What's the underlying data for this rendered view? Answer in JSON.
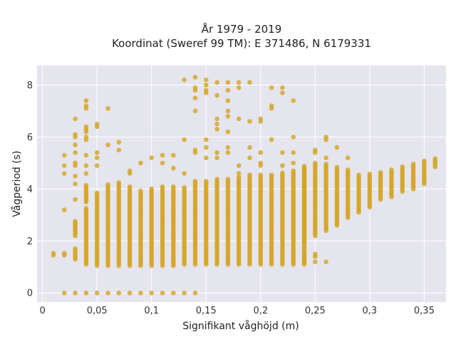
{
  "chart_data": {
    "type": "scatter",
    "title_line1": "År 1979 - 2019",
    "title_line2": "Koordinat (Sweref 99 TM): E 371486, N 6179331",
    "xlabel": "Signifikant våghöjd (m)",
    "ylabel": "Vågperiod (s)",
    "xlim": [
      -0.005,
      0.37
    ],
    "ylim": [
      -0.35,
      8.75
    ],
    "x_ticks": [
      0,
      0.05,
      0.1,
      0.15,
      0.2,
      0.25,
      0.3,
      0.35
    ],
    "x_tick_labels": [
      "0",
      "0,05",
      "0,1",
      "0,15",
      "0,2",
      "0,25",
      "0,3",
      "0,35"
    ],
    "y_ticks": [
      0,
      2,
      4,
      6,
      8
    ],
    "y_tick_labels": [
      "0",
      "2",
      "4",
      "6",
      "8"
    ],
    "grid": true,
    "background": "#e5e5ee",
    "marker_color": "#d4a421",
    "columns": [
      {
        "x": 0.01,
        "ranges": [
          [
            1.45,
            1.55
          ]
        ]
      },
      {
        "x": 0.02,
        "ranges": [
          [
            1.45,
            1.6
          ]
        ]
      },
      {
        "x": 0.03,
        "ranges": [
          [
            1.3,
            1.7
          ],
          [
            2.2,
            2.8
          ]
        ]
      },
      {
        "x": 0.04,
        "ranges": [
          [
            1.1,
            3.3
          ],
          [
            3.5,
            4.2
          ]
        ]
      },
      {
        "x": 0.05,
        "ranges": [
          [
            1.05,
            3.9
          ]
        ]
      },
      {
        "x": 0.06,
        "ranges": [
          [
            1.05,
            4.2
          ]
        ]
      },
      {
        "x": 0.07,
        "ranges": [
          [
            1.05,
            4.3
          ]
        ]
      },
      {
        "x": 0.08,
        "ranges": [
          [
            1.05,
            4.1
          ]
        ]
      },
      {
        "x": 0.09,
        "ranges": [
          [
            1.05,
            4.0
          ]
        ]
      },
      {
        "x": 0.1,
        "ranges": [
          [
            1.05,
            4.05
          ]
        ]
      },
      {
        "x": 0.11,
        "ranges": [
          [
            1.05,
            4.15
          ]
        ]
      },
      {
        "x": 0.12,
        "ranges": [
          [
            1.05,
            4.1
          ]
        ]
      },
      {
        "x": 0.13,
        "ranges": [
          [
            1.1,
            4.1
          ]
        ]
      },
      {
        "x": 0.14,
        "ranges": [
          [
            1.1,
            4.3
          ]
        ]
      },
      {
        "x": 0.15,
        "ranges": [
          [
            1.1,
            4.3
          ]
        ]
      },
      {
        "x": 0.16,
        "ranges": [
          [
            1.1,
            4.4
          ]
        ]
      },
      {
        "x": 0.17,
        "ranges": [
          [
            1.1,
            4.45
          ]
        ]
      },
      {
        "x": 0.18,
        "ranges": [
          [
            1.1,
            4.5
          ]
        ]
      },
      {
        "x": 0.19,
        "ranges": [
          [
            1.1,
            4.55
          ]
        ]
      },
      {
        "x": 0.2,
        "ranges": [
          [
            1.1,
            4.6
          ]
        ]
      },
      {
        "x": 0.21,
        "ranges": [
          [
            1.1,
            4.6
          ]
        ]
      },
      {
        "x": 0.22,
        "ranges": [
          [
            1.1,
            4.65
          ]
        ]
      },
      {
        "x": 0.23,
        "ranges": [
          [
            1.1,
            4.7
          ]
        ]
      },
      {
        "x": 0.24,
        "ranges": [
          [
            1.1,
            4.8
          ],
          [
            2.0,
            4.9
          ]
        ]
      },
      {
        "x": 0.25,
        "ranges": [
          [
            2.2,
            5.0
          ]
        ]
      },
      {
        "x": 0.26,
        "ranges": [
          [
            2.4,
            5.0
          ]
        ]
      },
      {
        "x": 0.27,
        "ranges": [
          [
            2.6,
            4.9
          ]
        ]
      },
      {
        "x": 0.28,
        "ranges": [
          [
            2.9,
            4.8
          ]
        ]
      },
      {
        "x": 0.29,
        "ranges": [
          [
            3.1,
            4.6
          ]
        ]
      },
      {
        "x": 0.3,
        "ranges": [
          [
            3.3,
            4.6
          ]
        ]
      },
      {
        "x": 0.31,
        "ranges": [
          [
            3.6,
            4.7
          ]
        ]
      },
      {
        "x": 0.32,
        "ranges": [
          [
            3.7,
            4.8
          ]
        ]
      },
      {
        "x": 0.33,
        "ranges": [
          [
            3.9,
            4.9
          ]
        ]
      },
      {
        "x": 0.34,
        "ranges": [
          [
            4.0,
            5.0
          ]
        ]
      },
      {
        "x": 0.35,
        "ranges": [
          [
            4.2,
            5.1
          ]
        ]
      },
      {
        "x": 0.36,
        "ranges": [
          [
            4.85,
            5.2
          ]
        ]
      }
    ],
    "points": [
      [
        0.02,
        0
      ],
      [
        0.03,
        0
      ],
      [
        0.04,
        0
      ],
      [
        0.05,
        0
      ],
      [
        0.06,
        0
      ],
      [
        0.07,
        0
      ],
      [
        0.08,
        0
      ],
      [
        0.09,
        0
      ],
      [
        0.1,
        0
      ],
      [
        0.11,
        0
      ],
      [
        0.12,
        0
      ],
      [
        0.13,
        0
      ],
      [
        0.14,
        0
      ],
      [
        0.02,
        3.2
      ],
      [
        0.02,
        4.6
      ],
      [
        0.02,
        4.9
      ],
      [
        0.02,
        5.3
      ],
      [
        0.03,
        3.6
      ],
      [
        0.03,
        4.2
      ],
      [
        0.03,
        4.5
      ],
      [
        0.03,
        4.9
      ],
      [
        0.03,
        5.0
      ],
      [
        0.03,
        5.4
      ],
      [
        0.03,
        5.7
      ],
      [
        0.03,
        6.0
      ],
      [
        0.03,
        6.1
      ],
      [
        0.03,
        6.7
      ],
      [
        0.04,
        4.6
      ],
      [
        0.04,
        4.9
      ],
      [
        0.04,
        5.3
      ],
      [
        0.04,
        5.9
      ],
      [
        0.04,
        6.0
      ],
      [
        0.04,
        6.2
      ],
      [
        0.04,
        6.3
      ],
      [
        0.04,
        6.4
      ],
      [
        0.04,
        7.1
      ],
      [
        0.04,
        7.2
      ],
      [
        0.04,
        7.4
      ],
      [
        0.05,
        4.9
      ],
      [
        0.05,
        5.2
      ],
      [
        0.05,
        5.4
      ],
      [
        0.05,
        6.4
      ],
      [
        0.05,
        6.5
      ],
      [
        0.06,
        5.7
      ],
      [
        0.06,
        7.1
      ],
      [
        0.07,
        5.5
      ],
      [
        0.07,
        5.8
      ],
      [
        0.08,
        4.6
      ],
      [
        0.08,
        4.7
      ],
      [
        0.09,
        5.0
      ],
      [
        0.1,
        5.2
      ],
      [
        0.11,
        5.3
      ],
      [
        0.11,
        5.0
      ],
      [
        0.12,
        5.3
      ],
      [
        0.12,
        4.8
      ],
      [
        0.13,
        5.9
      ],
      [
        0.13,
        4.6
      ],
      [
        0.14,
        5.4
      ],
      [
        0.14,
        5.5
      ],
      [
        0.14,
        7.0
      ],
      [
        0.14,
        7.5
      ],
      [
        0.14,
        7.8
      ],
      [
        0.14,
        7.9
      ],
      [
        0.14,
        8.3
      ],
      [
        0.13,
        8.2
      ],
      [
        0.15,
        5.9
      ],
      [
        0.15,
        5.6
      ],
      [
        0.15,
        5.2
      ],
      [
        0.15,
        7.7
      ],
      [
        0.15,
        7.8
      ],
      [
        0.15,
        8.0
      ],
      [
        0.15,
        8.2
      ],
      [
        0.16,
        8.1
      ],
      [
        0.16,
        7.6
      ],
      [
        0.16,
        6.7
      ],
      [
        0.16,
        6.5
      ],
      [
        0.16,
        6.3
      ],
      [
        0.16,
        5.4
      ],
      [
        0.16,
        5.2
      ],
      [
        0.17,
        8.1
      ],
      [
        0.17,
        7.8
      ],
      [
        0.17,
        7.4
      ],
      [
        0.17,
        7.0
      ],
      [
        0.17,
        6.8
      ],
      [
        0.17,
        6.2
      ],
      [
        0.17,
        5.6
      ],
      [
        0.17,
        5.4
      ],
      [
        0.18,
        8.1
      ],
      [
        0.18,
        7.9
      ],
      [
        0.18,
        6.7
      ],
      [
        0.18,
        4.6
      ],
      [
        0.18,
        4.9
      ],
      [
        0.19,
        8.1
      ],
      [
        0.19,
        6.6
      ],
      [
        0.19,
        5.6
      ],
      [
        0.19,
        5.2
      ],
      [
        0.2,
        6.7
      ],
      [
        0.2,
        6.6
      ],
      [
        0.2,
        5.4
      ],
      [
        0.2,
        5.0
      ],
      [
        0.2,
        4.9
      ],
      [
        0.21,
        7.9
      ],
      [
        0.21,
        7.2
      ],
      [
        0.21,
        7.1
      ],
      [
        0.21,
        5.9
      ],
      [
        0.22,
        7.9
      ],
      [
        0.22,
        7.7
      ],
      [
        0.22,
        5.4
      ],
      [
        0.22,
        4.9
      ],
      [
        0.23,
        7.4
      ],
      [
        0.23,
        6.0
      ],
      [
        0.23,
        5.4
      ],
      [
        0.23,
        5.0
      ],
      [
        0.24,
        1.5
      ],
      [
        0.24,
        1.4
      ],
      [
        0.24,
        1.3
      ],
      [
        0.24,
        1.2
      ],
      [
        0.25,
        1.5
      ],
      [
        0.25,
        1.4
      ],
      [
        0.25,
        1.2
      ],
      [
        0.25,
        5.4
      ],
      [
        0.25,
        5.5
      ],
      [
        0.26,
        1.2
      ],
      [
        0.26,
        5.9
      ],
      [
        0.26,
        6.0
      ],
      [
        0.26,
        5.2
      ],
      [
        0.27,
        5.6
      ],
      [
        0.28,
        5.2
      ]
    ]
  }
}
